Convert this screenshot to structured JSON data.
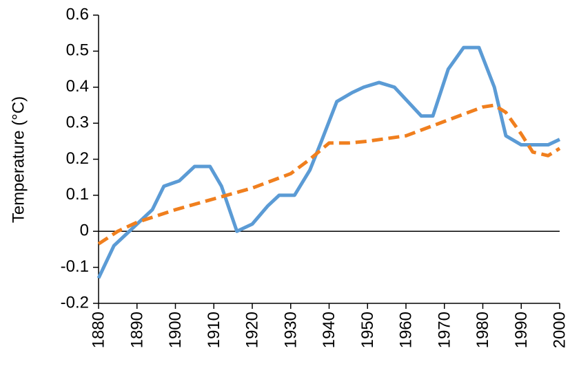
{
  "chart_data": {
    "type": "line",
    "ylabel": "Temperature (°C)",
    "xlim": [
      1880,
      2000
    ],
    "xticks": [
      1880,
      1890,
      1900,
      1910,
      1920,
      1930,
      1940,
      1950,
      1960,
      1970,
      1980,
      1990,
      2000
    ],
    "ylim": [
      -0.2,
      0.6
    ],
    "yticks": [
      -0.2,
      -0.1,
      0,
      0.1,
      0.2,
      0.3,
      0.4,
      0.5,
      0.6
    ],
    "grid": false,
    "series": [
      {
        "color": "#5b9bd5",
        "dashed": false,
        "x": [
          1880,
          1884,
          1888,
          1894,
          1897,
          1901,
          1905,
          1909,
          1912,
          1916,
          1920,
          1924,
          1927,
          1931,
          1935,
          1938,
          1942,
          1946,
          1949,
          1953,
          1957,
          1964,
          1967,
          1971,
          1975,
          1979,
          1983,
          1986,
          1990,
          1993,
          1997,
          2000
        ],
        "values": [
          -0.13,
          -0.04,
          0.0,
          0.06,
          0.125,
          0.14,
          0.18,
          0.18,
          0.125,
          0.0,
          0.02,
          0.07,
          0.1,
          0.1,
          0.17,
          0.25,
          0.36,
          0.385,
          0.4,
          0.413,
          0.4,
          0.32,
          0.32,
          0.45,
          0.51,
          0.51,
          0.4,
          0.265,
          0.24,
          0.24,
          0.24,
          0.255
        ]
      },
      {
        "color": "#f07f1e",
        "dashed": true,
        "x": [
          1880,
          1885,
          1890,
          1900,
          1910,
          1920,
          1930,
          1935,
          1940,
          1945,
          1950,
          1960,
          1970,
          1980,
          1983,
          1986,
          1990,
          1993,
          1997,
          2000
        ],
        "values": [
          -0.035,
          0.0,
          0.025,
          0.06,
          0.09,
          0.12,
          0.16,
          0.2,
          0.245,
          0.245,
          0.25,
          0.265,
          0.305,
          0.345,
          0.35,
          0.33,
          0.27,
          0.22,
          0.21,
          0.23
        ]
      }
    ]
  }
}
